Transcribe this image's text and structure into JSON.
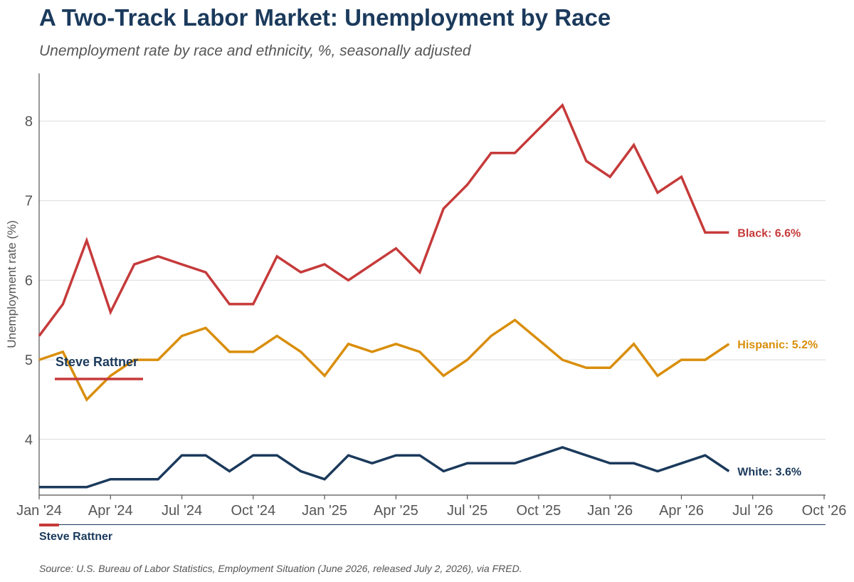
{
  "header": {
    "title": "A Two-Track Labor Market: Unemployment by Race",
    "subtitle": "Unemployment rate by race and ethnicity, %, seasonally adjusted"
  },
  "watermark": {
    "text": "Steve Rattner",
    "underline_color": "#c63a3a"
  },
  "footer": {
    "brand": "Steve Rattner",
    "source": "Source: U.S. Bureau of Labor Statistics, Employment Situation (June 2026, released July 2, 2026), via FRED."
  },
  "chart_data": {
    "type": "line",
    "ylabel": "Unemployment rate (%)",
    "xlabel": "",
    "ylim": [
      3.3,
      8.6
    ],
    "y_ticks": [
      4,
      5,
      6,
      7,
      8
    ],
    "x_tick_labels": [
      "Jan '24",
      "Apr '24",
      "Jul '24",
      "Oct '24",
      "Jan '25",
      "Apr '25",
      "Jul '25",
      "Oct '25",
      "Jan '26",
      "Apr '26",
      "Jul '26",
      "Oct '26"
    ],
    "x_tick_dates": [
      "2024-01",
      "2024-04",
      "2024-07",
      "2024-10",
      "2025-01",
      "2025-04",
      "2025-07",
      "2025-10",
      "2026-01",
      "2026-04",
      "2026-07",
      "2026-10"
    ],
    "x_range": [
      "2024-01",
      "2026-10"
    ],
    "grid": "horizontal",
    "x": [
      "2024-01",
      "2024-02",
      "2024-03",
      "2024-04",
      "2024-05",
      "2024-06",
      "2024-07",
      "2024-08",
      "2024-09",
      "2024-10",
      "2024-11",
      "2024-12",
      "2025-01",
      "2025-02",
      "2025-03",
      "2025-04",
      "2025-05",
      "2025-06",
      "2025-07",
      "2025-08",
      "2025-09",
      "2025-10",
      "2025-11",
      "2025-12",
      "2026-01",
      "2026-02",
      "2026-03",
      "2026-04",
      "2026-05",
      "2026-06"
    ],
    "series": [
      {
        "key": "black",
        "color": "#c63a3a",
        "end_label": "Black: 6.6%",
        "values": [
          5.3,
          5.7,
          6.5,
          5.6,
          6.2,
          6.3,
          6.2,
          6.1,
          5.7,
          5.7,
          6.3,
          6.1,
          6.2,
          6.0,
          6.2,
          6.4,
          6.1,
          6.9,
          7.2,
          7.6,
          7.6,
          7.9,
          8.2,
          7.5,
          7.3,
          7.7,
          7.1,
          7.3,
          6.6,
          6.6
        ]
      },
      {
        "key": "hispanic",
        "color": "#d98e0b",
        "end_label": "Hispanic: 5.2%",
        "values": [
          5.0,
          5.1,
          4.5,
          4.8,
          5.0,
          5.0,
          5.3,
          5.4,
          5.1,
          5.1,
          5.3,
          5.1,
          4.8,
          5.2,
          5.1,
          5.2,
          5.1,
          4.8,
          5.0,
          5.3,
          5.5,
          5.25,
          5.0,
          4.9,
          4.9,
          5.2,
          4.8,
          5.0,
          5.0,
          5.2
        ]
      },
      {
        "key": "white",
        "color": "#1b3a5c",
        "end_label": "White: 3.6%",
        "values": [
          3.4,
          3.4,
          3.4,
          3.5,
          3.5,
          3.5,
          3.8,
          3.8,
          3.6,
          3.8,
          3.8,
          3.6,
          3.5,
          3.8,
          3.7,
          3.8,
          3.8,
          3.6,
          3.7,
          3.7,
          3.7,
          3.8,
          3.9,
          3.8,
          3.7,
          3.7,
          3.6,
          3.7,
          3.8,
          3.6
        ]
      }
    ]
  }
}
